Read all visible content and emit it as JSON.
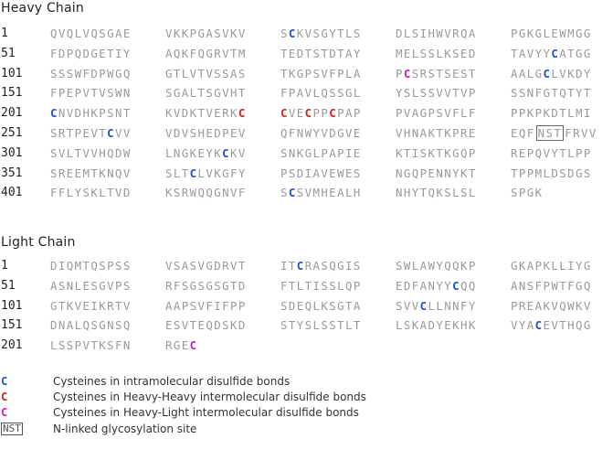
{
  "heavy_chain": {
    "title": "Heavy Chain",
    "rows": [
      {
        "pos": "1",
        "blocks": [
          "QVQLVQSGAE",
          "VKKPGASVKV",
          "SCKVSGYTLS",
          "DLSIHWVRQA",
          "PGKGLEWMGG"
        ]
      },
      {
        "pos": "51",
        "blocks": [
          "FDPQDGETIY",
          "AQKFQGRVTM",
          "TEDTSTDTAY",
          "MELSSLKSED",
          "TAVYYCATGG"
        ]
      },
      {
        "pos": "101",
        "blocks": [
          "SSSWFDPWGQ",
          "GTLVTVSSAS",
          "TKGPSVFPLA",
          "PCSRSTSEST",
          "AALGCLVKDY"
        ]
      },
      {
        "pos": "151",
        "blocks": [
          "FPEPVTVSWN",
          "SGALTSGVHT",
          "FPAVLQSSGL",
          "YSLSSVVTVP",
          "SSNFGTQTYT"
        ]
      },
      {
        "pos": "201",
        "blocks": [
          "CNVDHKPSNT",
          "KVDKTVERKC",
          "CVECPPCPAP",
          "PVAGPSVFLF",
          "PPKPKDTLMI"
        ]
      },
      {
        "pos": "251",
        "blocks": [
          "SRTPEVTCVV",
          "VDVSHEDPEV",
          "QFNWYVDGVE",
          "VHNAKTKPRE",
          "EQFNSTFRVV"
        ]
      },
      {
        "pos": "301",
        "blocks": [
          "SVLTVVHQDW",
          "LNGKEYKCKV",
          "SNKGLPAPIE",
          "KTISKTKGQP",
          "REPQVYTLPP"
        ]
      },
      {
        "pos": "351",
        "blocks": [
          "SREEMTKNQV",
          "SLTCLVKGFY",
          "PSDIAVEWES",
          "NGQPENNYKT",
          "TPPMLDSDGS"
        ]
      },
      {
        "pos": "401",
        "blocks": [
          "FFLYSKLTVD",
          "KSRWQQGNVF",
          "SCSVMHEALH",
          "NHYTQKSLSL",
          "SPGK"
        ]
      }
    ]
  },
  "light_chain": {
    "title": "Light Chain",
    "rows": [
      {
        "pos": "1",
        "blocks": [
          "DIQMTQSPSS",
          "VSASVGDRVT",
          "ITCRASQGIS",
          "SWLAWYQQKP",
          "GKAPKLLIYG"
        ]
      },
      {
        "pos": "51",
        "blocks": [
          "ASNLESGVPS",
          "RFSGSGSGTD",
          "FTLTISSLQP",
          "EDFANYYCQQ",
          "ANSFPWTFGQ"
        ]
      },
      {
        "pos": "101",
        "blocks": [
          "GTKVEIKRTV",
          "AAPSVFIFPP",
          "SDEQLKSGTA",
          "SVVCLLNNFY",
          "PREAKVQWKV"
        ]
      },
      {
        "pos": "151",
        "blocks": [
          "DNALQSGNSQ",
          "ESVTEQDSKD",
          "STYSLSSTLT",
          "LSKADYEKHK",
          "VYACEVTHQG"
        ]
      },
      {
        "pos": "201",
        "blocks": [
          "LSSPVTKSFN",
          "RGEC"
        ]
      }
    ]
  },
  "highlights": {
    "heavy": [
      {
        "row": 0,
        "block": 2,
        "index": 1,
        "kind": "intra"
      },
      {
        "row": 1,
        "block": 4,
        "index": 5,
        "kind": "intra"
      },
      {
        "row": 2,
        "block": 3,
        "index": 1,
        "kind": "hl"
      },
      {
        "row": 2,
        "block": 4,
        "index": 4,
        "kind": "intra"
      },
      {
        "row": 4,
        "block": 0,
        "index": 0,
        "kind": "intra"
      },
      {
        "row": 4,
        "block": 1,
        "index": 9,
        "kind": "hh"
      },
      {
        "row": 4,
        "block": 2,
        "index": 0,
        "kind": "hh"
      },
      {
        "row": 4,
        "block": 2,
        "index": 3,
        "kind": "hh"
      },
      {
        "row": 4,
        "block": 2,
        "index": 6,
        "kind": "hh"
      },
      {
        "row": 5,
        "block": 0,
        "index": 7,
        "kind": "intra"
      },
      {
        "row": 6,
        "block": 1,
        "index": 7,
        "kind": "intra"
      },
      {
        "row": 7,
        "block": 1,
        "index": 3,
        "kind": "intra"
      },
      {
        "row": 8,
        "block": 1,
        "index": 0,
        "kind": "none"
      },
      {
        "row": 8,
        "block": 2,
        "index": 1,
        "kind": "intra"
      }
    ],
    "light": [
      {
        "row": 0,
        "block": 2,
        "index": 2,
        "kind": "intra"
      },
      {
        "row": 1,
        "block": 3,
        "index": 7,
        "kind": "intra"
      },
      {
        "row": 2,
        "block": 3,
        "index": 3,
        "kind": "intra"
      },
      {
        "row": 3,
        "block": 4,
        "index": 3,
        "kind": "intra"
      },
      {
        "row": 4,
        "block": 1,
        "index": 3,
        "kind": "hl"
      }
    ],
    "glycosylation": [
      {
        "chain": "heavy",
        "row": 5,
        "block": 4,
        "start": 3,
        "length": 3
      }
    ]
  },
  "legend": [
    {
      "key": "C",
      "kind": "intra",
      "text": "Cysteines in intramolecular disulfide bonds"
    },
    {
      "key": "C",
      "kind": "hh",
      "text": "Cysteines in Heavy-Heavy intermolecular disulfide bonds"
    },
    {
      "key": "C",
      "kind": "hl",
      "text": "Cysteines in Heavy-Light intermolecular disulfide bonds"
    },
    {
      "key": "NST",
      "kind": "glyco",
      "text": "N-linked glycosylation site"
    }
  ]
}
